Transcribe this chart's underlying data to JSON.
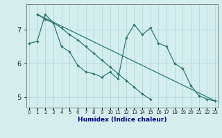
{
  "xlabel": "Humidex (Indice chaleur)",
  "x": [
    0,
    1,
    2,
    3,
    4,
    5,
    6,
    7,
    8,
    9,
    10,
    11,
    12,
    13,
    14,
    15,
    16,
    17,
    18,
    19,
    20,
    21,
    22,
    23
  ],
  "line1": [
    6.6,
    6.65,
    7.45,
    7.2,
    6.5,
    6.35,
    5.95,
    5.75,
    5.7,
    5.6,
    5.75,
    5.55,
    6.75,
    7.15,
    6.85,
    7.05,
    6.6,
    6.5,
    6.0,
    5.85,
    5.35,
    5.05,
    4.95,
    4.9
  ],
  "line2_x": [
    1,
    2,
    3,
    4,
    5,
    6,
    7,
    8,
    9,
    10,
    11,
    12,
    13,
    14,
    15,
    16,
    17,
    18,
    19,
    20,
    21,
    22,
    23
  ],
  "line2_y": [
    7.45,
    7.3,
    7.2,
    7.05,
    6.85,
    6.7,
    6.5,
    6.3,
    6.1,
    5.9,
    5.7,
    5.5,
    5.3,
    5.1,
    4.95,
    null,
    null,
    null,
    null,
    null,
    null,
    null,
    null
  ],
  "line3_x": [
    1,
    23
  ],
  "line3_y": [
    7.45,
    4.9
  ],
  "line_color": "#2a7a6a",
  "bg_color": "#d4eeee",
  "grid_color": "#aed8d8",
  "ylim": [
    4.7,
    7.75
  ],
  "yticks": [
    5,
    6,
    7
  ],
  "xlim": [
    -0.3,
    23.3
  ]
}
